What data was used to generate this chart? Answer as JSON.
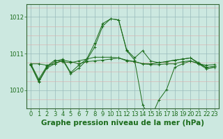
{
  "xlabel": "Graphe pression niveau de la mer (hPa)",
  "bg_color": "#cce8e0",
  "grid_major_color": "#aacccc",
  "grid_minor_color": "#ddbbbb",
  "line_color": "#1a6b1a",
  "marker": "+",
  "xlim": [
    -0.5,
    23.5
  ],
  "ylim": [
    1009.5,
    1012.35
  ],
  "yticks": [
    1010,
    1011,
    1012
  ],
  "xticks": [
    0,
    1,
    2,
    3,
    4,
    5,
    6,
    7,
    8,
    9,
    10,
    11,
    12,
    13,
    14,
    15,
    16,
    17,
    18,
    19,
    20,
    21,
    22,
    23
  ],
  "series": [
    [
      1010.72,
      1010.72,
      1010.68,
      1010.72,
      1010.82,
      1010.78,
      1010.72,
      1010.78,
      1010.8,
      1010.82,
      1010.85,
      1010.88,
      1010.8,
      1010.78,
      1010.72,
      1010.7,
      1010.7,
      1010.72,
      1010.72,
      1010.78,
      1010.8,
      1010.72,
      1010.68,
      1010.7
    ],
    [
      1010.72,
      1010.3,
      1010.65,
      1010.82,
      1010.78,
      1010.75,
      1010.8,
      1010.85,
      1010.9,
      1010.9,
      1010.9,
      1010.88,
      1010.82,
      1010.78,
      1010.72,
      1010.72,
      1010.75,
      1010.78,
      1010.82,
      1010.85,
      1010.88,
      1010.72,
      1010.62,
      1010.65
    ],
    [
      1010.7,
      1010.25,
      1010.62,
      1010.78,
      1010.85,
      1010.48,
      1010.68,
      1010.85,
      1011.28,
      1011.82,
      1011.95,
      1011.92,
      1011.1,
      1010.88,
      1011.08,
      1010.8,
      1010.75,
      1010.78,
      1010.82,
      1010.85,
      1010.88,
      1010.75,
      1010.62,
      1010.65
    ],
    [
      1010.68,
      1010.22,
      1010.6,
      1010.72,
      1010.82,
      1010.45,
      1010.6,
      1010.82,
      1011.18,
      1011.75,
      1011.95,
      1011.92,
      1011.08,
      1010.82,
      1009.6,
      1009.22,
      1009.72,
      1010.02,
      1010.62,
      1010.72,
      1010.8,
      1010.72,
      1010.58,
      1010.62
    ]
  ],
  "xlabel_fontsize": 7.5,
  "tick_fontsize": 6,
  "tick_color": "#1a6b1a",
  "label_color": "#1a6b1a"
}
